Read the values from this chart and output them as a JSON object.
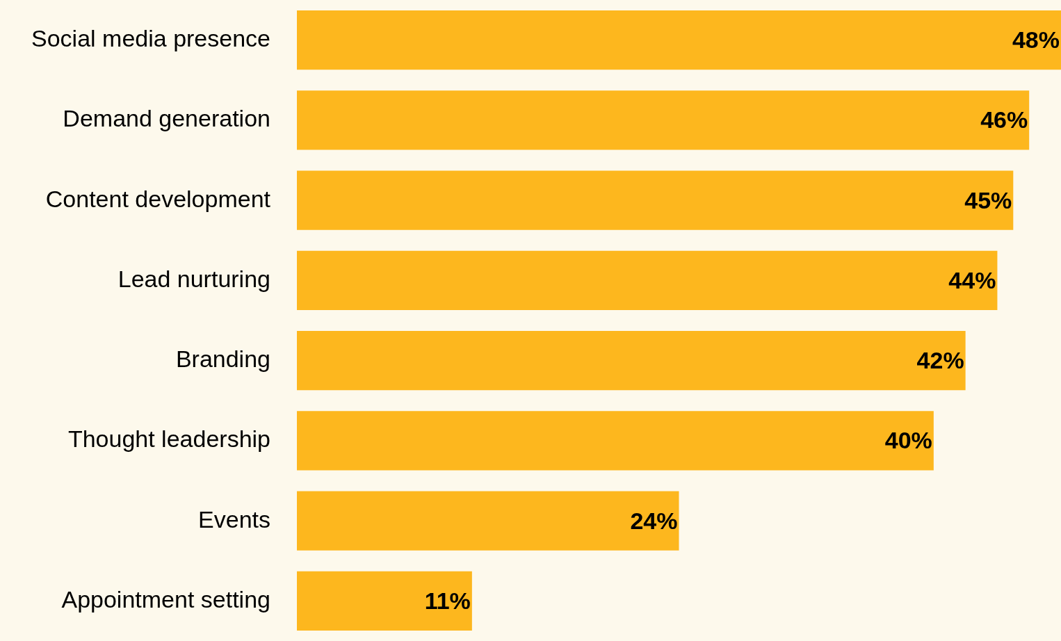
{
  "chart_data": {
    "type": "bar",
    "orientation": "horizontal",
    "categories": [
      "Social media presence",
      "Demand generation",
      "Content development",
      "Lead nurturing",
      "Branding",
      "Thought leadership",
      "Events",
      "Appointment setting"
    ],
    "values": [
      48,
      46,
      45,
      44,
      42,
      40,
      24,
      11
    ],
    "value_labels": [
      "48%",
      "46%",
      "45%",
      "44%",
      "42%",
      "40%",
      "24%",
      "11%"
    ],
    "color": "#fdb71e",
    "xlim": [
      0,
      48
    ],
    "tick_labels": "y",
    "grid": false,
    "legend": false
  }
}
